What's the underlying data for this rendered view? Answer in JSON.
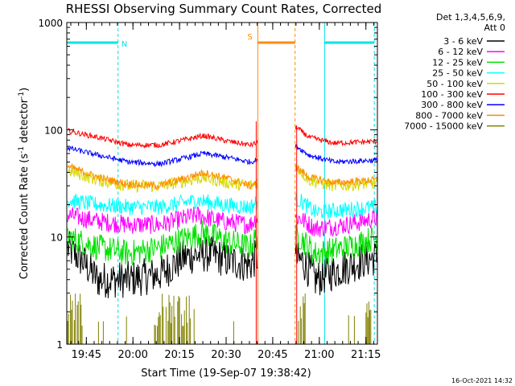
{
  "chart_data": {
    "type": "line",
    "title": "RHESSI Observing Summary Count Rates, Corrected",
    "xlabel": "Start Time (19-Sep-07 19:38:42)",
    "ylabel": "Corrected Count Rate (s",
    "ylabel_sup1": "-1",
    "ylabel_mid": " detector",
    "ylabel_sup2": "-1",
    "ylabel_end": ")",
    "x_range_minutes": [
      0,
      100
    ],
    "x_ticks": [
      {
        "label": "19:45",
        "min": 6.3
      },
      {
        "label": "20:00",
        "min": 21.3
      },
      {
        "label": "20:15",
        "min": 36.3
      },
      {
        "label": "20:30",
        "min": 51.3
      },
      {
        "label": "20:45",
        "min": 66.3
      },
      {
        "label": "21:00",
        "min": 81.3
      },
      {
        "label": "21:15",
        "min": 96.3
      }
    ],
    "ylim": [
      1,
      1000
    ],
    "y_scale": "log",
    "y_ticks": [
      {
        "label": "1",
        "value": 1
      },
      {
        "label": "10",
        "value": 10
      },
      {
        "label": "100",
        "value": 100
      },
      {
        "label": "1000",
        "value": 1000
      }
    ],
    "legend_header": [
      "Det 1,3,4,5,6,9,",
      "Att 0"
    ],
    "legend_position": "right",
    "timestamp": "16-Oct-2021 14:32",
    "gaps_minutes": [
      [
        61.5,
        73.5
      ]
    ],
    "attenuator_lines": [
      {
        "min": 0,
        "color": "#00e5e5",
        "style": "solid"
      },
      {
        "min": 16.5,
        "color": "#00e5e5",
        "style": "dashed"
      },
      {
        "min": 61.5,
        "color": "#ff8c00",
        "style": "solid"
      },
      {
        "min": 73.5,
        "color": "#ff8c00",
        "style": "dashed"
      },
      {
        "min": 83,
        "color": "#00e5e5",
        "style": "solid"
      },
      {
        "min": 99,
        "color": "#00e5e5",
        "style": "dashed"
      }
    ],
    "flag_bars": [
      {
        "label": "N",
        "start": 0,
        "end": 16.5,
        "value": 650,
        "color": "#00e5e5"
      },
      {
        "label": "S",
        "start": 61.5,
        "end": 73.5,
        "value": 650,
        "color": "#ff8c00"
      },
      {
        "label": "",
        "start": 83,
        "end": 99,
        "value": 650,
        "color": "#00e5e5"
      }
    ],
    "series": [
      {
        "name": "3 - 6 keV",
        "color": "#000000",
        "noise": 0.35,
        "points": [
          [
            0,
            8
          ],
          [
            5,
            6
          ],
          [
            10,
            4
          ],
          [
            20,
            4
          ],
          [
            30,
            4.5
          ],
          [
            38,
            6.5
          ],
          [
            46,
            7
          ],
          [
            52,
            6
          ],
          [
            59,
            5.5
          ],
          [
            61,
            6.5
          ],
          [
            76,
            6
          ],
          [
            80,
            4
          ],
          [
            88,
            5
          ],
          [
            95,
            6
          ],
          [
            100,
            6.5
          ]
        ]
      },
      {
        "name": "6 - 12 keV",
        "color": "#ff00ff",
        "noise": 0.18,
        "points": [
          [
            0,
            16
          ],
          [
            10,
            14
          ],
          [
            20,
            13
          ],
          [
            30,
            13
          ],
          [
            42,
            16
          ],
          [
            50,
            14
          ],
          [
            59,
            13
          ],
          [
            61,
            15
          ],
          [
            75,
            15
          ],
          [
            80,
            12
          ],
          [
            90,
            13
          ],
          [
            100,
            15
          ]
        ]
      },
      {
        "name": "12 - 25 keV",
        "color": "#00e000",
        "noise": 0.25,
        "points": [
          [
            0,
            10
          ],
          [
            10,
            8
          ],
          [
            20,
            7
          ],
          [
            30,
            8
          ],
          [
            44,
            11
          ],
          [
            52,
            9
          ],
          [
            59,
            8
          ],
          [
            61,
            10
          ],
          [
            75,
            10
          ],
          [
            80,
            7
          ],
          [
            90,
            8
          ],
          [
            100,
            10
          ]
        ]
      },
      {
        "name": "25 - 50 keV",
        "color": "#00ffff",
        "noise": 0.15,
        "points": [
          [
            0,
            22
          ],
          [
            10,
            20
          ],
          [
            20,
            19
          ],
          [
            30,
            19
          ],
          [
            42,
            22
          ],
          [
            50,
            20
          ],
          [
            59,
            19
          ],
          [
            61,
            21
          ],
          [
            75,
            22
          ],
          [
            80,
            17
          ],
          [
            90,
            18
          ],
          [
            100,
            19
          ]
        ]
      },
      {
        "name": "50 - 100 keV",
        "color": "#d8d800",
        "noise": 0.12,
        "points": [
          [
            0,
            42
          ],
          [
            10,
            34
          ],
          [
            20,
            30
          ],
          [
            30,
            30
          ],
          [
            44,
            36
          ],
          [
            52,
            32
          ],
          [
            59,
            30
          ],
          [
            61,
            32
          ],
          [
            74,
            45
          ],
          [
            78,
            34
          ],
          [
            86,
            30
          ],
          [
            100,
            32
          ]
        ]
      },
      {
        "name": "100 - 300 keV",
        "color": "#ff0000",
        "noise": 0.05,
        "points": [
          [
            0,
            98
          ],
          [
            10,
            85
          ],
          [
            20,
            72
          ],
          [
            30,
            72
          ],
          [
            44,
            88
          ],
          [
            52,
            78
          ],
          [
            59,
            72
          ],
          [
            61,
            75
          ],
          [
            74,
            105
          ],
          [
            78,
            85
          ],
          [
            86,
            75
          ],
          [
            100,
            78
          ]
        ]
      },
      {
        "name": "300 - 800 keV",
        "color": "#0000ff",
        "noise": 0.05,
        "points": [
          [
            0,
            68
          ],
          [
            10,
            58
          ],
          [
            20,
            50
          ],
          [
            30,
            48
          ],
          [
            44,
            60
          ],
          [
            52,
            55
          ],
          [
            59,
            50
          ],
          [
            61,
            52
          ],
          [
            74,
            70
          ],
          [
            78,
            58
          ],
          [
            86,
            50
          ],
          [
            100,
            52
          ]
        ]
      },
      {
        "name": "800 - 7000 keV",
        "color": "#ff8c00",
        "noise": 0.07,
        "points": [
          [
            0,
            46
          ],
          [
            10,
            36
          ],
          [
            20,
            31
          ],
          [
            30,
            30
          ],
          [
            44,
            40
          ],
          [
            52,
            35
          ],
          [
            59,
            30
          ],
          [
            61,
            32
          ],
          [
            74,
            45
          ],
          [
            78,
            36
          ],
          [
            86,
            32
          ],
          [
            100,
            34
          ]
        ]
      },
      {
        "name": "7000 - 15000 keV",
        "color": "#808000",
        "noise": 0,
        "points": []
      }
    ]
  }
}
